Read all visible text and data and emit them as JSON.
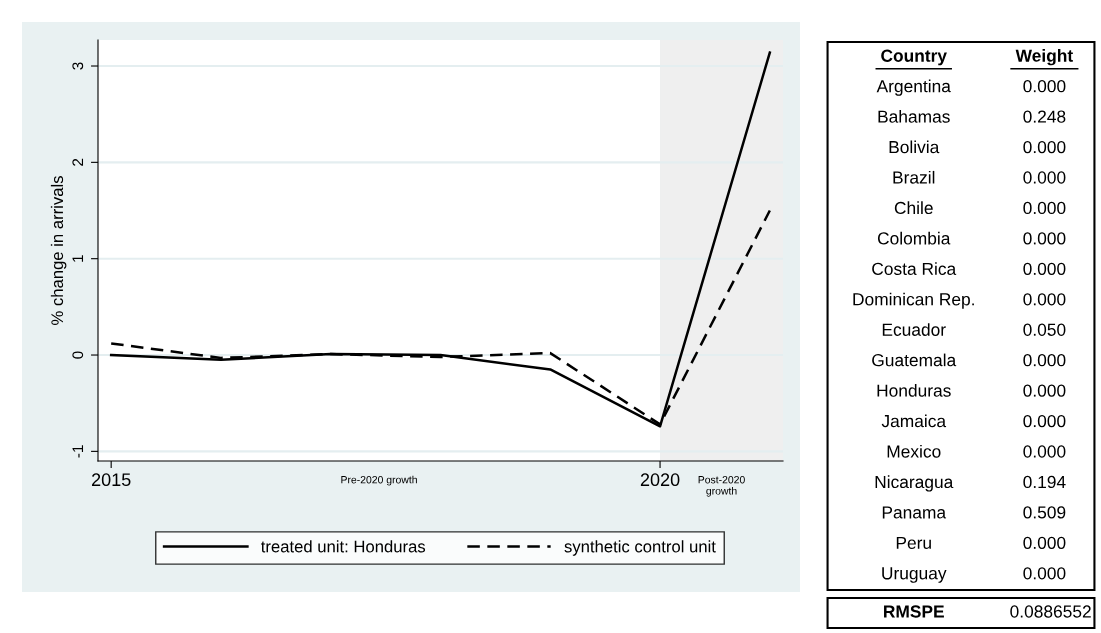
{
  "chart_data": [
    {
      "type": "line",
      "ylabel": "% change in arrivals",
      "x": [
        2015,
        2016,
        2017,
        2018,
        2019,
        2020,
        2021
      ],
      "series": [
        {
          "name": "treated unit: Honduras",
          "color": "#000000",
          "line_style": "solid",
          "values": [
            0.0,
            -0.05,
            0.01,
            0.0,
            -0.15,
            -0.74,
            3.14
          ]
        },
        {
          "name": "synthetic control unit",
          "color": "#000000",
          "line_style": "dashed",
          "values": [
            0.12,
            -0.03,
            0.01,
            -0.02,
            0.02,
            -0.72,
            1.5
          ]
        }
      ],
      "xlim": [
        2014.88,
        2021.12
      ],
      "ylim": [
        -1.1,
        3.27
      ],
      "xticks": [
        2015,
        2020
      ],
      "yticks": [
        -1,
        0,
        1,
        2,
        3
      ],
      "grid": "y",
      "legend": "bottom",
      "marker": "none",
      "bands": [
        {
          "axis": "x",
          "from": 2014.88,
          "to": 2020,
          "label": "Pre-2020 growth",
          "color": "#ffffff"
        },
        {
          "axis": "x",
          "from": 2020,
          "to": 2021.12,
          "label": "Post-2020\ngrowth",
          "color": "#efefef"
        }
      ]
    },
    {
      "type": "other",
      "annotations": [
        "Country",
        "Weight",
        "Argentina",
        "0.000",
        "Bahamas",
        "0.248",
        "Bolivia",
        "0.000",
        "Brazil",
        "0.000",
        "Chile",
        "0.000",
        "Colombia",
        "0.000",
        "Costa Rica",
        "0.000",
        "Dominican Rep.",
        "0.000",
        "Ecuador",
        "0.050",
        "Guatemala",
        "0.000",
        "Honduras",
        "0.000",
        "Jamaica",
        "0.000",
        "Mexico",
        "0.000",
        "Nicaragua",
        "0.194",
        "Panama",
        "0.509",
        "Peru",
        "0.000",
        "Uruguay",
        "0.000",
        "RMSPE",
        "0.0886552"
      ]
    }
  ]
}
